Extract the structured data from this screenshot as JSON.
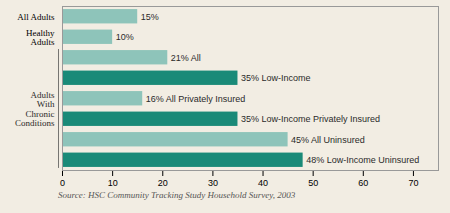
{
  "chart_data": {
    "type": "bar",
    "orientation": "horizontal",
    "categories": [
      "All Adults",
      "Healthy\nAdults",
      null,
      null,
      null,
      null,
      null,
      null
    ],
    "values": [
      15,
      10,
      21,
      35,
      16,
      35,
      45,
      48
    ],
    "value_labels": [
      "15%",
      "10%",
      "21% All",
      "35% Low-Income",
      "16% All Privately Insured",
      "35% Low-Income Privately Insured",
      "45% All Uninsured",
      "48% Low-Income Uninsured"
    ],
    "data_labels": true,
    "colors": [
      "#8ec4ba",
      "#8ec4ba",
      "#8ec4ba",
      "#1a8a78",
      "#8ec4ba",
      "#1a8a78",
      "#8ec4ba",
      "#1a8a78"
    ],
    "xlim": [
      0,
      75
    ],
    "xticks": [
      0,
      10,
      20,
      30,
      40,
      50,
      60,
      70
    ],
    "annotations": [
      "Adults\nWith\nChronic\nConditions"
    ],
    "caption": "Source: HSC Community Tracking Study Household Survey, 2003",
    "grid": false
  }
}
